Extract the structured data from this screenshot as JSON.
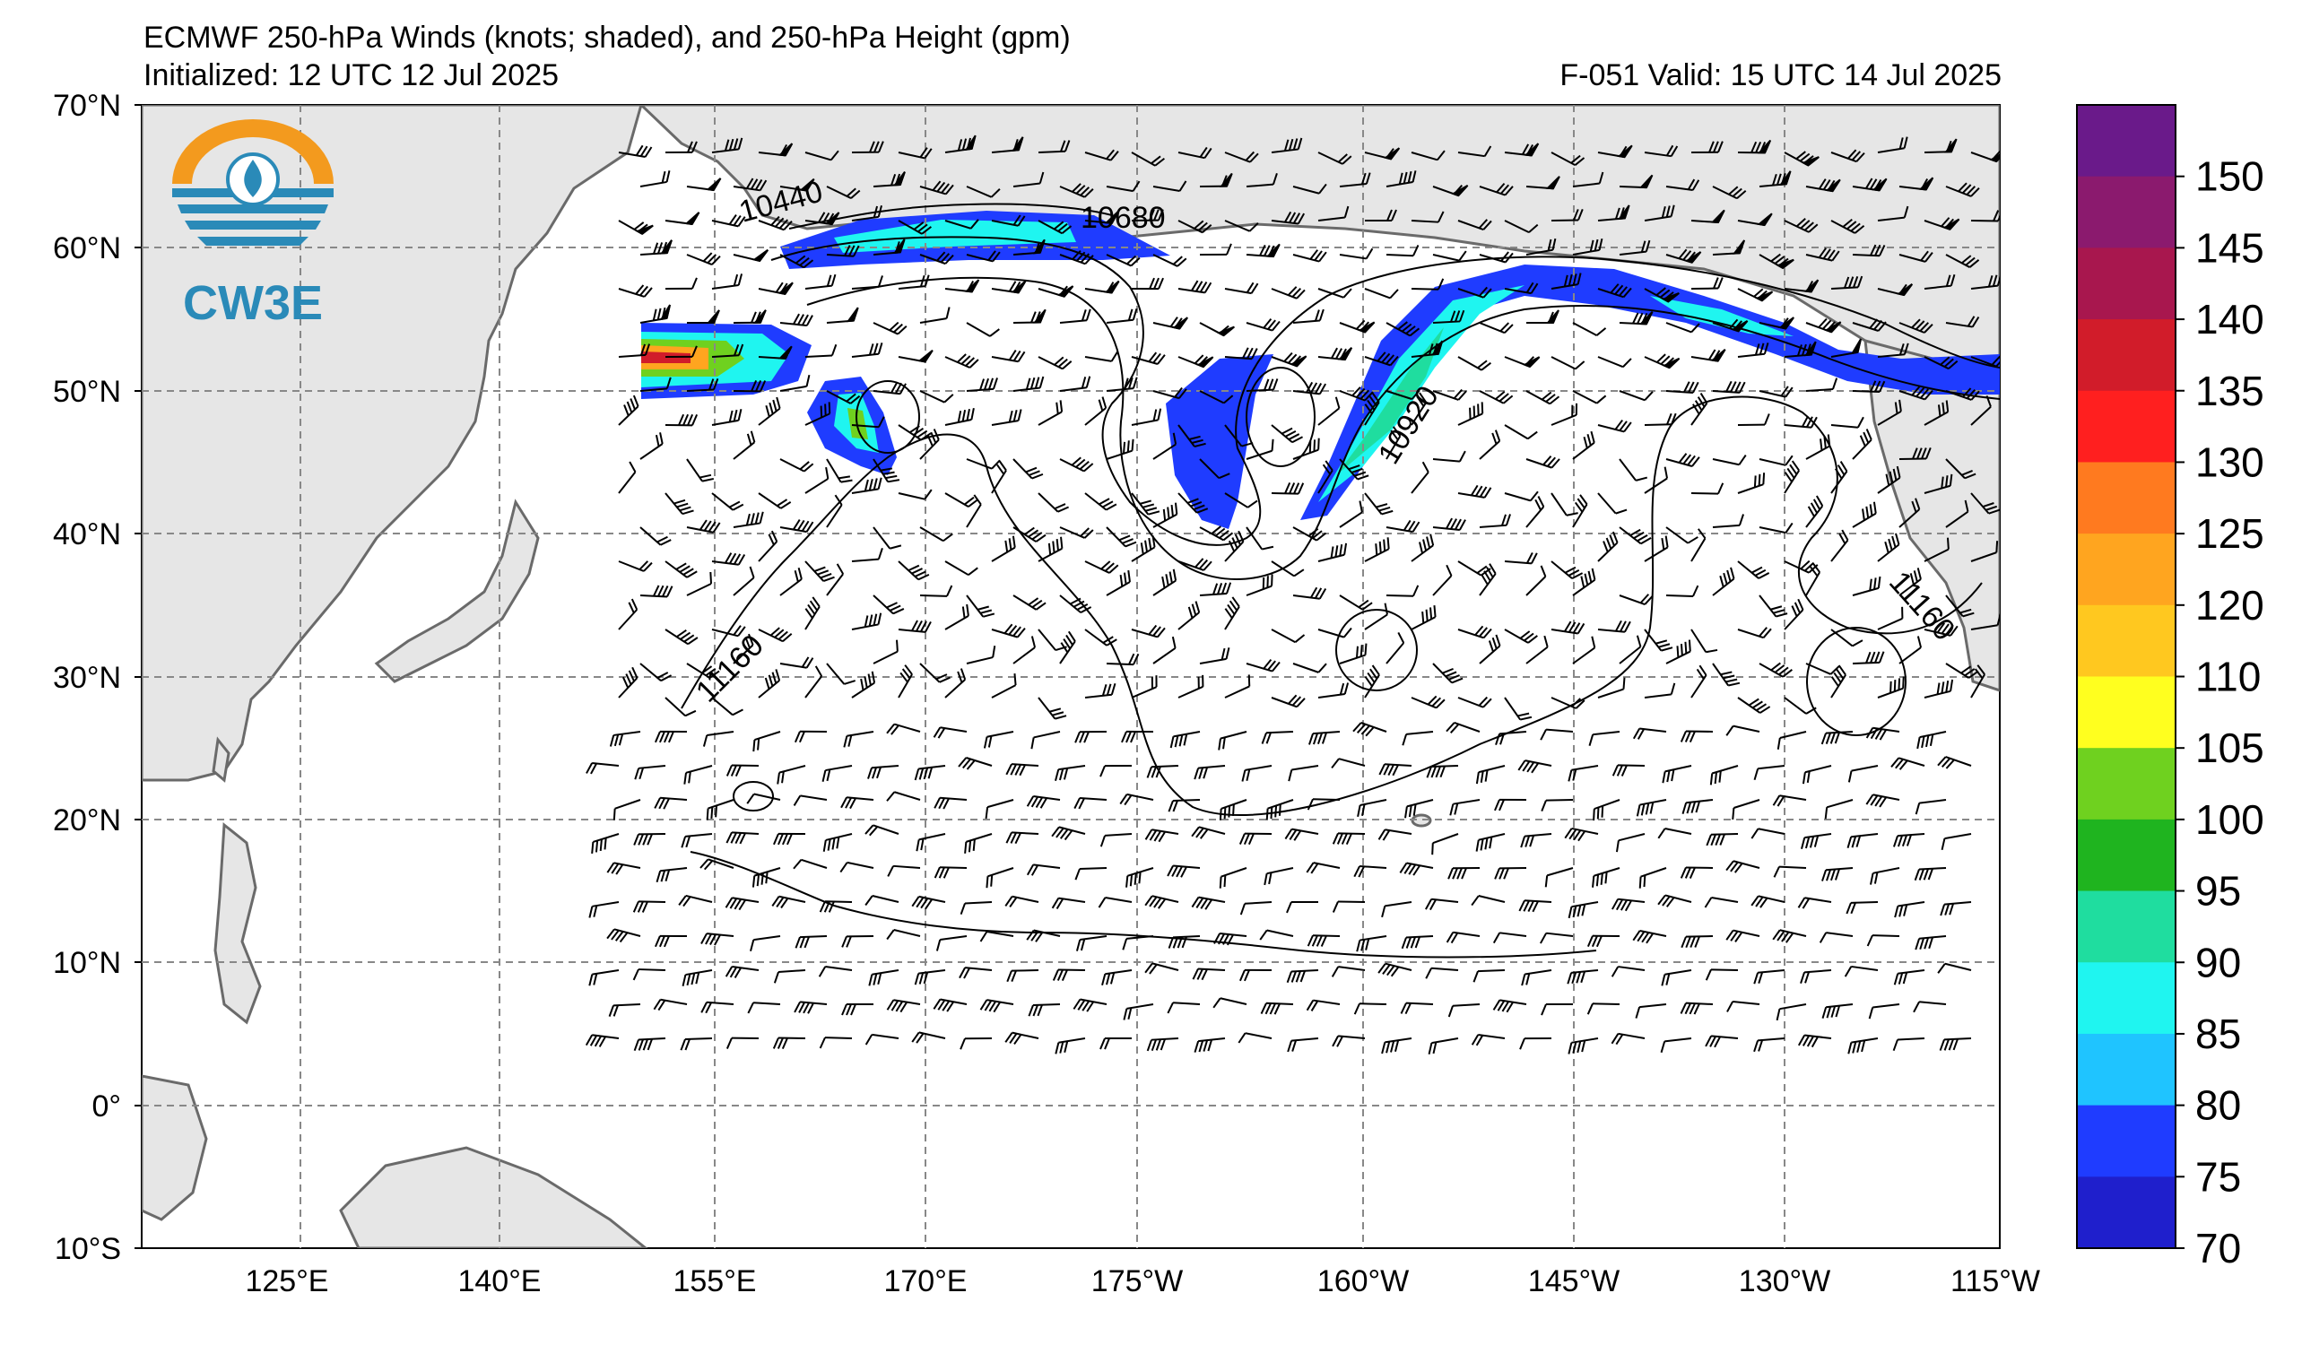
{
  "header": {
    "title": "ECMWF 250-hPa Winds (knots; shaded), and 250-hPa Height (gpm)",
    "initialized": "Initialized: 12 UTC 12 Jul 2025",
    "valid": "F-051  Valid: 15 UTC 14 Jul 2025"
  },
  "logo": {
    "text": "CW3E"
  },
  "map": {
    "lat_labels": [
      "70°N",
      "60°N",
      "50°N",
      "40°N",
      "30°N",
      "20°N",
      "10°N",
      "0°",
      "10°S"
    ],
    "lon_labels": [
      "125°E",
      "140°E",
      "155°E",
      "170°E",
      "175°W",
      "160°W",
      "145°W",
      "130°W",
      "115°W"
    ],
    "contour_labels": [
      "10440",
      "10680",
      "10920",
      "11160",
      "11160"
    ]
  },
  "colorbar": {
    "ticks": [
      "150",
      "145",
      "140",
      "135",
      "130",
      "125",
      "120",
      "110",
      "105",
      "100",
      "95",
      "90",
      "85",
      "80",
      "75",
      "70"
    ],
    "colors": [
      "#6a1a8a",
      "#8b1a6e",
      "#a8174e",
      "#d11c2a",
      "#ff1f1f",
      "#ff7a1f",
      "#ffa51f",
      "#ffc81f",
      "#ffff1f",
      "#6fd11f",
      "#1fb41f",
      "#1fdd9f",
      "#1ff5f0",
      "#1fc4ff",
      "#1f3cff",
      "#1f1fcc"
    ]
  }
}
